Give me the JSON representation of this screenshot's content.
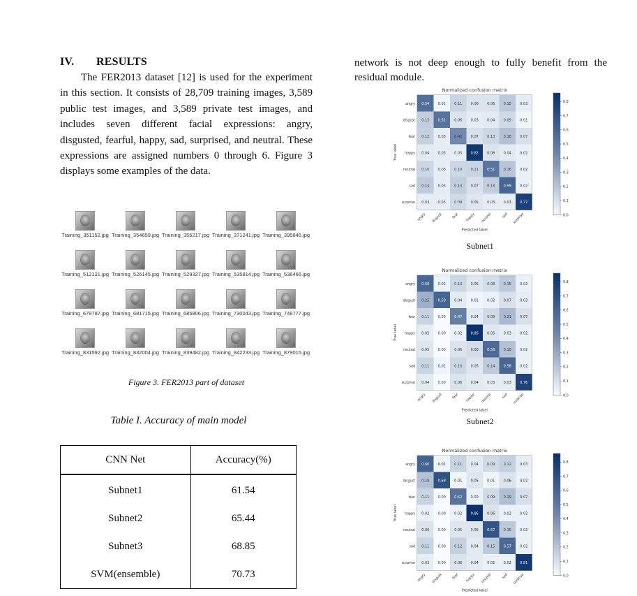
{
  "section": {
    "number": "IV.",
    "title": "RESULTS",
    "paragraph": "The FER2013 dataset [12] is used for the experiment in this section. It consists of 28,709 training images, 3,589 public test images, and 3,589 private test images, and includes seven different facial expressions: angry, disgusted, fearful, happy, sad, surprised, and neutral. These expressions are assigned numbers 0 through 6. Figure 3 displays some examples of the data."
  },
  "right_text": "network is not deep enough to fully benefit from the residual module.",
  "figure3": {
    "caption": "Figure 3. FER2013 part of dataset",
    "images": [
      "Training_351152.jpg",
      "Training_354659.jpg",
      "Training_355217.jpg",
      "Training_371241.jpg",
      "Training_395846.jpg",
      "Training_512121.jpg",
      "Training_526145.jpg",
      "Training_529327.jpg",
      "Training_535814.jpg",
      "Training_536466.jpg",
      "Training_679787.jpg",
      "Training_681715.jpg",
      "Training_685806.jpg",
      "Training_730043.jpg",
      "Training_748777.jpg",
      "Training_831592.jpg",
      "Training_832004.jpg",
      "Training_839482.jpg",
      "Training_842233.jpg",
      "Training_879015.jpg"
    ]
  },
  "table1": {
    "title": "Table I.  Accuracy of main model",
    "headers": [
      "CNN Net",
      "Accuracy(%)"
    ],
    "rows": [
      [
        "Subnet1",
        "61.54"
      ],
      [
        "Subnet2",
        "65.44"
      ],
      [
        "Subnet3",
        "68.85"
      ],
      [
        "SVM(ensemble)",
        "70.73"
      ]
    ]
  },
  "chart_data": [
    {
      "type": "heatmap",
      "title": "Normalized confusion matrix",
      "xlabel": "Predicted label",
      "ylabel": "True label",
      "caption": "Subnet1",
      "labels": [
        "angry",
        "disgust",
        "fear",
        "happy",
        "neutral",
        "sad",
        "surprise"
      ],
      "colorbar_ticks": [
        "0.8",
        "0.7",
        "0.6",
        "0.5",
        "0.4",
        "0.3",
        "0.2",
        "0.1",
        "0.0"
      ],
      "matrix": [
        [
          "0.54",
          "0.01",
          "0.11",
          "0.06",
          "0.06",
          "0.15",
          "0.03"
        ],
        [
          "0.13",
          "0.52",
          "0.06",
          "0.03",
          "0.04",
          "0.09",
          "0.01"
        ],
        [
          "0.12",
          "0.03",
          "0.42",
          "0.07",
          "0.10",
          "0.18",
          "0.07"
        ],
        [
          "0.04",
          "0.03",
          "0.03",
          "0.82",
          "0.06",
          "0.04",
          "0.02"
        ],
        [
          "0.10",
          "0.03",
          "0.10",
          "0.11",
          "0.51",
          "0.16",
          "0.02"
        ],
        [
          "0.14",
          "0.03",
          "0.13",
          "0.07",
          "0.13",
          "0.59",
          "0.02"
        ],
        [
          "0.03",
          "0.03",
          "0.09",
          "0.05",
          "0.03",
          "0.03",
          "0.77"
        ]
      ]
    },
    {
      "type": "heatmap",
      "title": "Normalized confusion matrix",
      "xlabel": "Predicted label",
      "ylabel": "True label",
      "caption": "Subnet2",
      "labels": [
        "angry",
        "disgust",
        "fear",
        "happy",
        "neutral",
        "sad",
        "surprise"
      ],
      "colorbar_ticks": [
        "0.8",
        "0.7",
        "0.6",
        "0.5",
        "0.4",
        "0.3",
        "0.2",
        "0.1",
        "0.0"
      ],
      "matrix": [
        [
          "0.58",
          "0.02",
          "0.10",
          "0.05",
          "0.08",
          "0.15",
          "0.02"
        ],
        [
          "0.25",
          "0.59",
          "0.04",
          "0.01",
          "0.02",
          "0.07",
          "0.03"
        ],
        [
          "0.11",
          "0.00",
          "0.47",
          "0.04",
          "0.09",
          "0.21",
          "0.07"
        ],
        [
          "0.03",
          "0.00",
          "0.02",
          "0.85",
          "0.05",
          "0.03",
          "0.02"
        ],
        [
          "0.05",
          "0.00",
          "0.06",
          "0.08",
          "0.56",
          "0.18",
          "0.02"
        ],
        [
          "0.11",
          "0.01",
          "0.10",
          "0.05",
          "0.14",
          "0.58",
          "0.02"
        ],
        [
          "0.04",
          "0.00",
          "0.06",
          "0.04",
          "0.03",
          "0.03",
          "0.76"
        ]
      ]
    },
    {
      "type": "heatmap",
      "title": "Normalized confusion matrix",
      "xlabel": "Predicted label",
      "ylabel": "True label",
      "caption": "",
      "labels": [
        "angry",
        "disgust",
        "fear",
        "happy",
        "neutral",
        "sad",
        "surprise"
      ],
      "colorbar_ticks": [
        "0.8",
        "0.7",
        "0.6",
        "0.5",
        "0.4",
        "0.3",
        "0.2",
        "0.1",
        "0.0"
      ],
      "matrix": [
        [
          "0.60",
          "0.01",
          "0.11",
          "0.04",
          "0.09",
          "0.12",
          "0.03"
        ],
        [
          "0.18",
          "0.68",
          "0.01",
          "0.05",
          "0.01",
          "0.06",
          "0.02"
        ],
        [
          "0.11",
          "0.00",
          "0.52",
          "0.02",
          "0.09",
          "0.19",
          "0.07"
        ],
        [
          "0.02",
          "0.00",
          "0.02",
          "0.86",
          "0.06",
          "0.02",
          "0.02"
        ],
        [
          "0.06",
          "0.00",
          "0.05",
          "0.05",
          "0.67",
          "0.15",
          "0.02"
        ],
        [
          "0.11",
          "0.00",
          "0.12",
          "0.04",
          "0.15",
          "0.57",
          "0.02"
        ],
        [
          "0.03",
          "0.00",
          "0.06",
          "0.04",
          "0.02",
          "0.02",
          "0.81"
        ]
      ]
    }
  ]
}
